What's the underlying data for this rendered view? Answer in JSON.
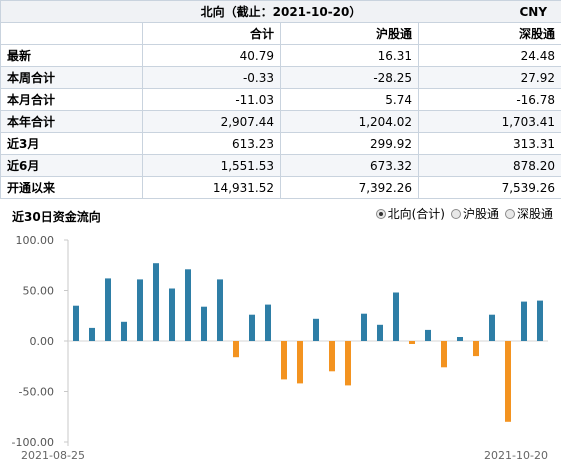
{
  "table": {
    "title": "北向（截止：2021-10-20）",
    "currency": "CNY",
    "columns": [
      "合计",
      "沪股通",
      "深股通"
    ],
    "rows": [
      {
        "label": "最新",
        "values": [
          "40.79",
          "16.31",
          "24.48"
        ]
      },
      {
        "label": "本周合计",
        "values": [
          "-0.33",
          "-28.25",
          "27.92"
        ]
      },
      {
        "label": "本月合计",
        "values": [
          "-11.03",
          "5.74",
          "-16.78"
        ]
      },
      {
        "label": "本年合计",
        "values": [
          "2,907.44",
          "1,204.02",
          "1,703.41"
        ]
      },
      {
        "label": "近3月",
        "values": [
          "613.23",
          "299.92",
          "313.31"
        ]
      },
      {
        "label": "近6月",
        "values": [
          "1,551.53",
          "673.32",
          "878.20"
        ]
      },
      {
        "label": "开通以来",
        "values": [
          "14,931.52",
          "7,392.26",
          "7,539.26"
        ]
      }
    ]
  },
  "chart_header": {
    "title": "近30日资金流向",
    "options": [
      {
        "label": "北向(合计)",
        "selected": true
      },
      {
        "label": "沪股通",
        "selected": false
      },
      {
        "label": "深股通",
        "selected": false
      }
    ]
  },
  "chart_data": {
    "type": "bar",
    "title": "近30日资金流向",
    "x_start_label": "2021-08-25",
    "x_end_label": "2021-10-20",
    "values": [
      35,
      13,
      62,
      19,
      61,
      77,
      52,
      71,
      34,
      61,
      -16,
      26,
      36,
      -38,
      -42,
      22,
      -30,
      -44,
      27,
      16,
      48,
      -3,
      11,
      -26,
      4,
      -15,
      26,
      -80,
      39,
      40
    ],
    "ylim": [
      -100,
      100
    ],
    "yticks": [
      100,
      50,
      0,
      -50,
      -100
    ],
    "ytick_labels": [
      "100.00",
      "50.00",
      "0.00",
      "-50.00",
      "-100.00"
    ],
    "colors": {
      "positive": "#2e7ea6",
      "negative": "#f39320",
      "axis": "#888888"
    },
    "grid": false
  }
}
